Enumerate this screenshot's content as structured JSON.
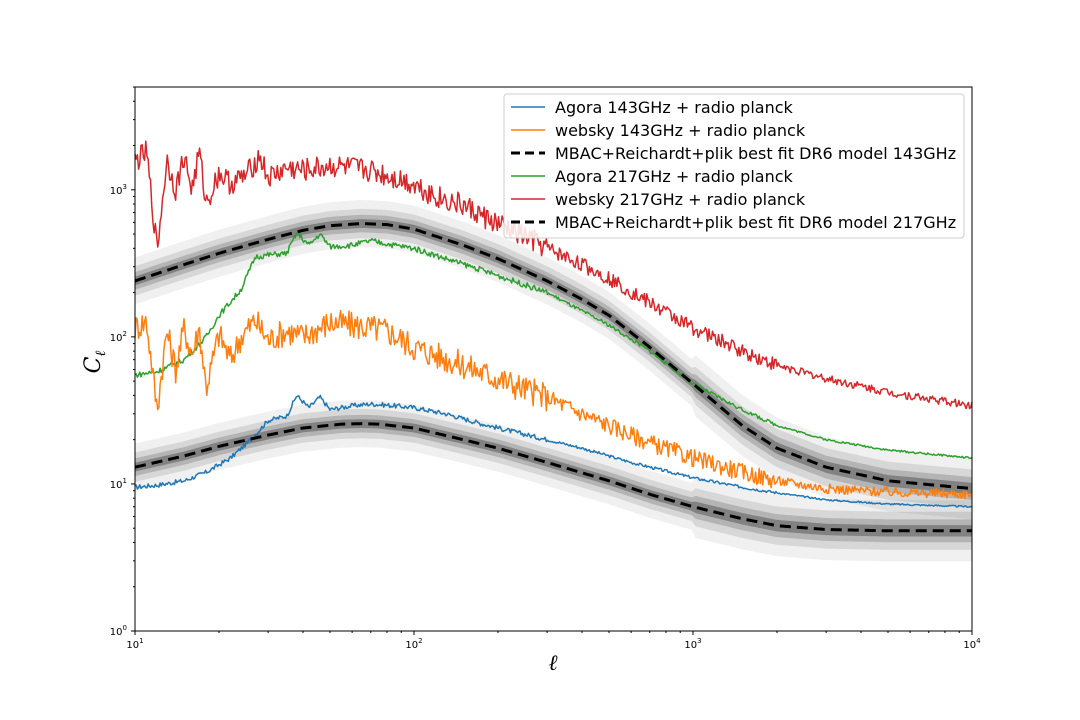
{
  "chart_data": {
    "type": "line",
    "xlabel": "ℓ",
    "ylabel": "C",
    "ylabel_sub": "ℓ",
    "xscale": "log",
    "yscale": "log",
    "xlim": [
      10,
      10000
    ],
    "ylim": [
      1,
      5000
    ],
    "grid": false,
    "legend_position": "top-right",
    "x_ticks": [
      {
        "value": 10,
        "base": "10",
        "exp": "1"
      },
      {
        "value": 100,
        "base": "10",
        "exp": "2"
      },
      {
        "value": 1000,
        "base": "10",
        "exp": "3"
      },
      {
        "value": 10000,
        "base": "10",
        "exp": "4"
      }
    ],
    "y_ticks": [
      {
        "value": 1,
        "base": "10",
        "exp": "0"
      },
      {
        "value": 10,
        "base": "10",
        "exp": "1"
      },
      {
        "value": 100,
        "base": "10",
        "exp": "2"
      },
      {
        "value": 1000,
        "base": "10",
        "exp": "3"
      }
    ],
    "series": [
      {
        "name": "Agora 143GHz + radio planck",
        "color": "#1f77b4",
        "style": "solid",
        "noise": 0.01,
        "x": [
          10,
          12,
          15,
          18,
          22,
          26,
          30,
          35,
          38,
          42,
          46,
          50,
          60,
          70,
          85,
          100,
          130,
          170,
          220,
          300,
          400,
          600,
          1000,
          1500,
          2000,
          3000,
          5000,
          10000
        ],
        "y": [
          9.5,
          9.8,
          10.5,
          12,
          15,
          20,
          27,
          29,
          40,
          33,
          39,
          32,
          34,
          35,
          34,
          33,
          30,
          26,
          23,
          20,
          17.5,
          14,
          11,
          9.5,
          8.7,
          7.8,
          7.3,
          7.0
        ]
      },
      {
        "name": "websky 143GHz + radio planck",
        "color": "#ff7f0e",
        "style": "solid",
        "noise": 0.06,
        "x": [
          10,
          11,
          12,
          13,
          14,
          15,
          16,
          17,
          18,
          20,
          22,
          24,
          27,
          30,
          35,
          40,
          50,
          60,
          70,
          80,
          100,
          120,
          150,
          200,
          250,
          300,
          400,
          500,
          700,
          1000,
          1500,
          2000,
          3000,
          5000,
          10000
        ],
        "y": [
          115,
          128,
          32,
          110,
          60,
          115,
          75,
          115,
          45,
          105,
          70,
          100,
          130,
          95,
          110,
          100,
          125,
          120,
          115,
          110,
          85,
          75,
          64,
          52,
          44,
          39,
          30,
          25,
          19,
          15,
          12,
          10.5,
          9.3,
          8.8,
          8.5
        ]
      },
      {
        "name": "MBAC+Reichardt+plik best fit DR6 model 143GHz",
        "color": "#000000",
        "style": "dashed",
        "noise": 0,
        "x": [
          10,
          15,
          20,
          30,
          40,
          55,
          65,
          75,
          100,
          150,
          200,
          300,
          500,
          700,
          1000,
          1500,
          2000,
          3000,
          5000,
          10000
        ],
        "y": [
          13,
          15.5,
          18,
          21.5,
          24,
          25.5,
          25.7,
          25.5,
          24,
          20,
          17.5,
          14,
          10.5,
          8.5,
          7,
          5.8,
          5.2,
          4.9,
          4.8,
          4.8
        ]
      },
      {
        "name": "Agora 217GHz + radio planck",
        "color": "#2ca02c",
        "style": "solid",
        "noise": 0.012,
        "x": [
          10,
          12,
          15,
          18,
          20,
          24,
          27,
          30,
          35,
          38,
          42,
          46,
          50,
          60,
          70,
          85,
          100,
          130,
          170,
          220,
          300,
          400,
          500,
          700,
          1000,
          1500,
          2000,
          3000,
          5000,
          10000
        ],
        "y": [
          55,
          58,
          70,
          100,
          140,
          210,
          350,
          360,
          370,
          510,
          420,
          500,
          410,
          420,
          450,
          420,
          400,
          340,
          290,
          245,
          200,
          150,
          120,
          80,
          48,
          32,
          25,
          20,
          17,
          15
        ]
      },
      {
        "name": "websky 217GHz + radio planck",
        "color": "#d62728",
        "style": "solid",
        "noise": 0.05,
        "x": [
          10,
          11,
          12,
          13,
          14,
          15,
          16,
          17,
          18,
          20,
          22,
          25,
          28,
          30,
          35,
          40,
          50,
          60,
          70,
          80,
          100,
          120,
          150,
          200,
          250,
          300,
          400,
          500,
          700,
          1000,
          1500,
          2000,
          3000,
          5000,
          10000
        ],
        "y": [
          1550,
          1800,
          390,
          1600,
          1000,
          1700,
          1000,
          1800,
          800,
          1300,
          1100,
          1250,
          1700,
          1200,
          1400,
          1350,
          1450,
          1400,
          1350,
          1250,
          1100,
          900,
          780,
          580,
          480,
          400,
          310,
          250,
          170,
          115,
          80,
          64,
          52,
          42,
          34
        ]
      },
      {
        "name": "MBAC+Reichardt+plik best fit DR6 model 217GHz",
        "color": "#000000",
        "style": "dashed",
        "noise": 0,
        "x": [
          10,
          15,
          20,
          30,
          40,
          50,
          65,
          80,
          100,
          150,
          200,
          300,
          400,
          500,
          700,
          1000,
          1500,
          2000,
          3000,
          5000,
          10000
        ],
        "y": [
          240,
          310,
          370,
          460,
          530,
          570,
          590,
          580,
          540,
          420,
          340,
          240,
          180,
          140,
          85,
          48,
          25,
          17.5,
          13,
          10.5,
          9.3
        ]
      }
    ]
  }
}
